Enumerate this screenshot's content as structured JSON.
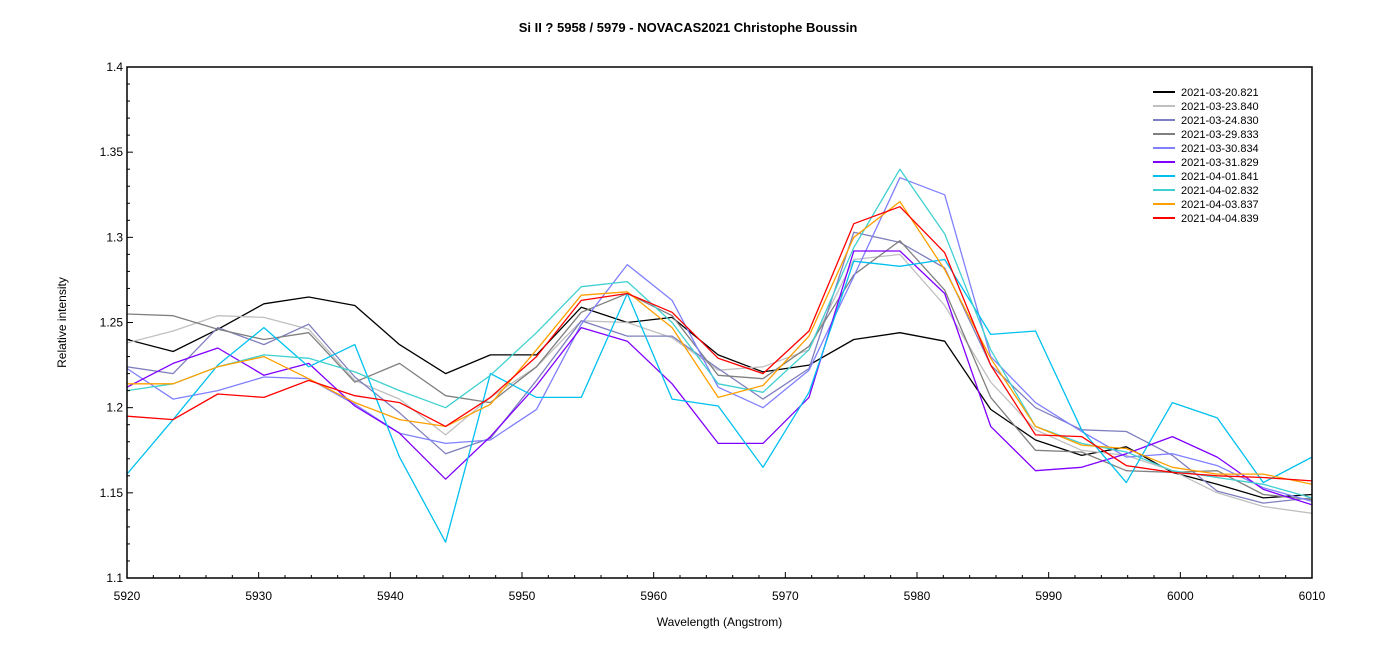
{
  "chart_data": {
    "type": "line",
    "title": "Si II ? 5958 / 5979 - NOVACAS2021   Christophe Boussin",
    "xlabel": "Wavelength (Angstrom)",
    "ylabel": "Relative intensity",
    "xlim": [
      5920,
      6010
    ],
    "ylim": [
      1.1,
      1.4
    ],
    "xticks": [
      5920,
      5930,
      5940,
      5950,
      5960,
      5970,
      5980,
      5990,
      6000,
      6010
    ],
    "xtick_labels": [
      "5920",
      "5930",
      "5940",
      "5950",
      "5960",
      "5970",
      "5980",
      "5990",
      "6000",
      "6010"
    ],
    "yticks": [
      1.1,
      1.15,
      1.2,
      1.25,
      1.3,
      1.35,
      1.4
    ],
    "ytick_labels": [
      "1.1",
      "1.15",
      "1.2",
      "1.25",
      "1.3",
      "1.35",
      "1.4"
    ],
    "grid": false,
    "legend_position": "top-right",
    "x": [
      5920.0,
      5923.5,
      5926.9,
      5930.4,
      5933.8,
      5937.3,
      5940.7,
      5944.2,
      5947.6,
      5951.1,
      5954.5,
      5958.0,
      5961.4,
      5964.9,
      5968.3,
      5971.8,
      5975.2,
      5978.7,
      5982.1,
      5985.6,
      5989.0,
      5992.5,
      5995.9,
      5999.4,
      6002.8,
      6006.3,
      6010.0
    ],
    "series": [
      {
        "name": "2021-03-20.821",
        "color": "#000000",
        "width": 1.3,
        "values": [
          1.24,
          1.233,
          1.246,
          1.261,
          1.265,
          1.26,
          1.237,
          1.22,
          1.231,
          1.231,
          1.259,
          1.25,
          1.253,
          1.231,
          1.221,
          1.225,
          1.24,
          1.244,
          1.239,
          1.199,
          1.181,
          1.172,
          1.177,
          1.162,
          1.155,
          1.147,
          1.149
        ]
      },
      {
        "name": "2021-03-23.840",
        "color": "#c0c0c0",
        "width": 1.3,
        "values": [
          1.238,
          1.245,
          1.254,
          1.253,
          1.246,
          1.216,
          1.205,
          1.184,
          1.206,
          1.224,
          1.251,
          1.25,
          1.241,
          1.222,
          1.224,
          1.234,
          1.287,
          1.29,
          1.26,
          1.215,
          1.187,
          1.175,
          1.172,
          1.163,
          1.15,
          1.142,
          1.138
        ]
      },
      {
        "name": "2021-03-24.830",
        "color": "#7f7fbf",
        "width": 1.3,
        "values": [
          1.224,
          1.22,
          1.247,
          1.237,
          1.249,
          1.218,
          1.197,
          1.173,
          1.182,
          1.216,
          1.251,
          1.242,
          1.242,
          1.223,
          1.205,
          1.223,
          1.303,
          1.297,
          1.282,
          1.225,
          1.2,
          1.187,
          1.186,
          1.172,
          1.151,
          1.144,
          1.147
        ]
      },
      {
        "name": "2021-03-29.833",
        "color": "#808080",
        "width": 1.3,
        "values": [
          1.255,
          1.254,
          1.246,
          1.24,
          1.244,
          1.215,
          1.226,
          1.207,
          1.203,
          1.224,
          1.256,
          1.267,
          1.254,
          1.219,
          1.217,
          1.236,
          1.278,
          1.298,
          1.269,
          1.206,
          1.175,
          1.174,
          1.163,
          1.162,
          1.163,
          1.149,
          1.146
        ]
      },
      {
        "name": "2021-03-30.834",
        "color": "#8080ff",
        "width": 1.3,
        "values": [
          1.223,
          1.205,
          1.21,
          1.218,
          1.217,
          1.202,
          1.185,
          1.179,
          1.181,
          1.199,
          1.249,
          1.284,
          1.263,
          1.212,
          1.2,
          1.222,
          1.277,
          1.335,
          1.325,
          1.23,
          1.203,
          1.186,
          1.171,
          1.173,
          1.166,
          1.153,
          1.145
        ]
      },
      {
        "name": "2021-03-31.829",
        "color": "#8000ff",
        "width": 1.3,
        "values": [
          1.212,
          1.226,
          1.235,
          1.219,
          1.226,
          1.201,
          1.185,
          1.158,
          1.183,
          1.213,
          1.247,
          1.239,
          1.214,
          1.179,
          1.179,
          1.206,
          1.292,
          1.292,
          1.267,
          1.189,
          1.163,
          1.165,
          1.173,
          1.183,
          1.171,
          1.152,
          1.143
        ]
      },
      {
        "name": "2021-04-01.841",
        "color": "#00c0f0",
        "width": 1.3,
        "values": [
          1.161,
          1.193,
          1.225,
          1.247,
          1.224,
          1.237,
          1.171,
          1.121,
          1.22,
          1.206,
          1.206,
          1.267,
          1.205,
          1.201,
          1.165,
          1.209,
          1.286,
          1.283,
          1.287,
          1.243,
          1.245,
          1.187,
          1.156,
          1.203,
          1.194,
          1.156,
          1.171
        ]
      },
      {
        "name": "2021-04-02.832",
        "color": "#40d0d0",
        "width": 1.3,
        "values": [
          1.21,
          1.214,
          1.224,
          1.231,
          1.229,
          1.221,
          1.21,
          1.2,
          1.219,
          1.244,
          1.271,
          1.274,
          1.25,
          1.214,
          1.209,
          1.234,
          1.294,
          1.34,
          1.302,
          1.234,
          1.189,
          1.179,
          1.174,
          1.163,
          1.159,
          1.155,
          1.147
        ]
      },
      {
        "name": "2021-04-03.837",
        "color": "#ffa000",
        "width": 1.3,
        "values": [
          1.214,
          1.214,
          1.224,
          1.23,
          1.217,
          1.203,
          1.193,
          1.189,
          1.202,
          1.234,
          1.266,
          1.268,
          1.247,
          1.206,
          1.213,
          1.242,
          1.3,
          1.321,
          1.281,
          1.229,
          1.189,
          1.178,
          1.176,
          1.165,
          1.161,
          1.161,
          1.155
        ]
      },
      {
        "name": "2021-04-04.839",
        "color": "#ff0000",
        "width": 1.3,
        "values": [
          1.195,
          1.193,
          1.208,
          1.206,
          1.216,
          1.207,
          1.203,
          1.189,
          1.206,
          1.23,
          1.263,
          1.267,
          1.256,
          1.229,
          1.22,
          1.245,
          1.308,
          1.318,
          1.291,
          1.225,
          1.184,
          1.183,
          1.166,
          1.162,
          1.16,
          1.159,
          1.157
        ]
      }
    ]
  }
}
